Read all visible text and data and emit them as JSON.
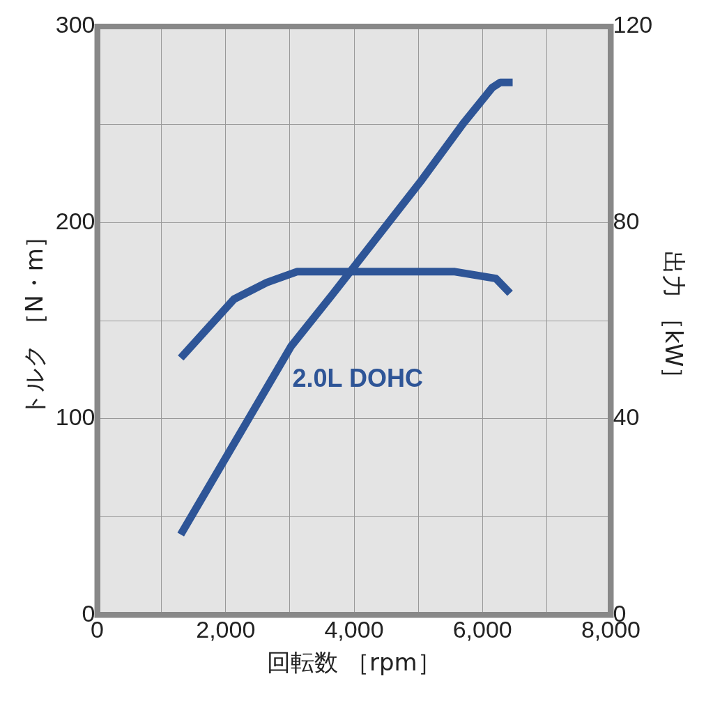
{
  "chart_data": {
    "type": "line",
    "xlabel": "回転数 ［rpm］",
    "ylabel": "トルク ［N・m］",
    "y2label": "出力 ［kW］",
    "annotations": [
      "2.0L DOHC"
    ],
    "xlim": [
      0,
      8000
    ],
    "xticks": [
      0,
      {
        "value": 1000,
        "label": null
      },
      {
        "value": 2000,
        "label": "2,000"
      },
      {
        "value": 3000,
        "label": null
      },
      {
        "value": 4000,
        "label": "4,000"
      },
      {
        "value": 5000,
        "label": null
      },
      {
        "value": 6000,
        "label": "6,000"
      },
      {
        "value": 7000,
        "label": null
      },
      {
        "value": 8000,
        "label": "8,000"
      }
    ],
    "ylim": [
      0,
      300
    ],
    "yticks": [
      0,
      {
        "value": 50,
        "label": null
      },
      100,
      {
        "value": 150,
        "label": null
      },
      200,
      {
        "value": 250,
        "label": null
      },
      300
    ],
    "y2lim": [
      0,
      120
    ],
    "y2ticks": [
      0,
      40,
      80,
      120
    ],
    "grid": true,
    "legend": false,
    "marker": "none",
    "line_style": "solid",
    "series": [
      {
        "color": "#2e5597",
        "x": [
          1300,
          2130,
          2640,
          3110,
          5570,
          6210,
          6430
        ],
        "values": [
          131,
          161,
          169.5,
          175,
          175,
          171.5,
          164
        ]
      },
      {
        "color": "#2e5597",
        "axis": "y2",
        "x": [
          1300,
          3020,
          3660,
          5060,
          5700,
          6150,
          6280,
          6470
        ],
        "values": [
          16.4,
          54.8,
          65.3,
          88.8,
          100.2,
          107.5,
          108.6,
          108.6
        ]
      }
    ]
  }
}
